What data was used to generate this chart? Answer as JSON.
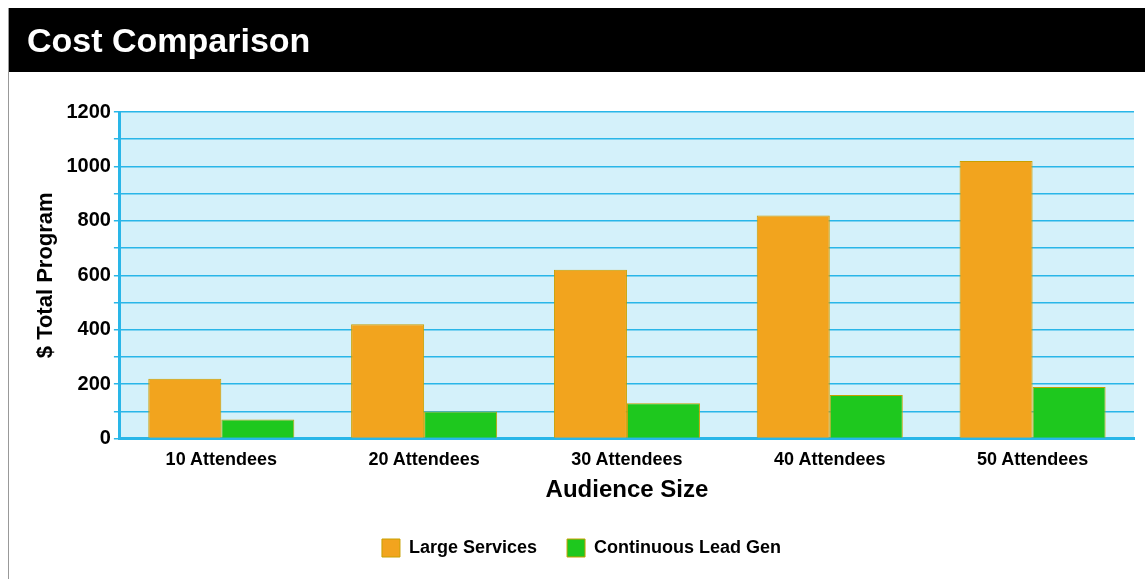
{
  "chart_data": {
    "type": "bar",
    "title": "Cost Comparison",
    "xlabel": "Audience Size",
    "ylabel": "$ Total Program",
    "categories": [
      "10 Attendees",
      "20 Attendees",
      "30 Attendees",
      "40 Attendees",
      "50 Attendees"
    ],
    "series": [
      {
        "name": "Large Services",
        "color": "#f2a41e",
        "values": [
          220,
          420,
          620,
          820,
          1020
        ]
      },
      {
        "name": "Continuous Lead Gen",
        "color": "#1ec81e",
        "values": [
          70,
          100,
          130,
          160,
          190
        ]
      }
    ],
    "ylim": [
      0,
      1200
    ],
    "yticks": [
      0,
      {
        "value": 100,
        "label": null
      },
      200,
      {
        "value": 300,
        "label": null
      },
      400,
      {
        "value": 500,
        "label": null
      },
      600,
      {
        "value": 700,
        "label": null
      },
      800,
      {
        "value": 900,
        "label": null
      },
      1000,
      {
        "value": 1100,
        "label": null
      },
      1200
    ],
    "grid": "y",
    "legend": "bottom"
  }
}
